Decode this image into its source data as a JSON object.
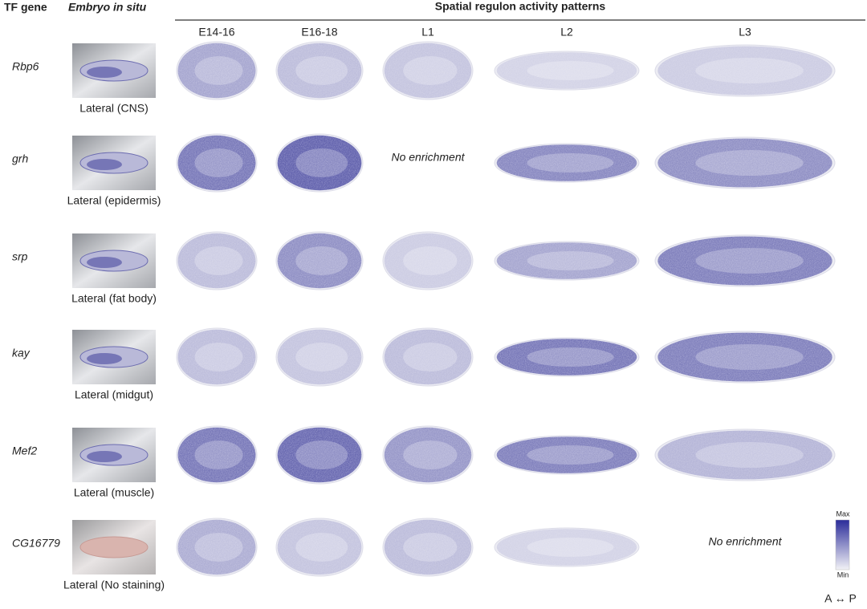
{
  "header": {
    "gene_column": "TF gene",
    "insitu_column": "Embryo in situ",
    "title": "Spatial regulon activity patterns",
    "stages": [
      "E14-16",
      "E16-18",
      "L1",
      "L2",
      "L3"
    ]
  },
  "rows": [
    {
      "gene": "Rbp6",
      "insitu_label": "Lateral (CNS)",
      "cells": [
        null,
        null,
        null,
        null,
        null
      ]
    },
    {
      "gene": "grh",
      "insitu_label": "Lateral (epidermis)",
      "cells": [
        null,
        null,
        "No enrichment",
        null,
        null
      ]
    },
    {
      "gene": "srp",
      "insitu_label": "Lateral (fat body)",
      "cells": [
        null,
        null,
        null,
        null,
        null
      ]
    },
    {
      "gene": "kay",
      "insitu_label": "Lateral (midgut)",
      "cells": [
        null,
        null,
        null,
        null,
        null
      ]
    },
    {
      "gene": "Mef2",
      "insitu_label": "Lateral (muscle)",
      "cells": [
        null,
        null,
        null,
        null,
        null
      ]
    },
    {
      "gene": "CG16779",
      "insitu_label": "Lateral (No staining)",
      "cells": [
        null,
        null,
        null,
        null,
        "No enrichment"
      ]
    }
  ],
  "legend": {
    "max": "Max",
    "min": "Min",
    "axis": "A ↔ P"
  }
}
